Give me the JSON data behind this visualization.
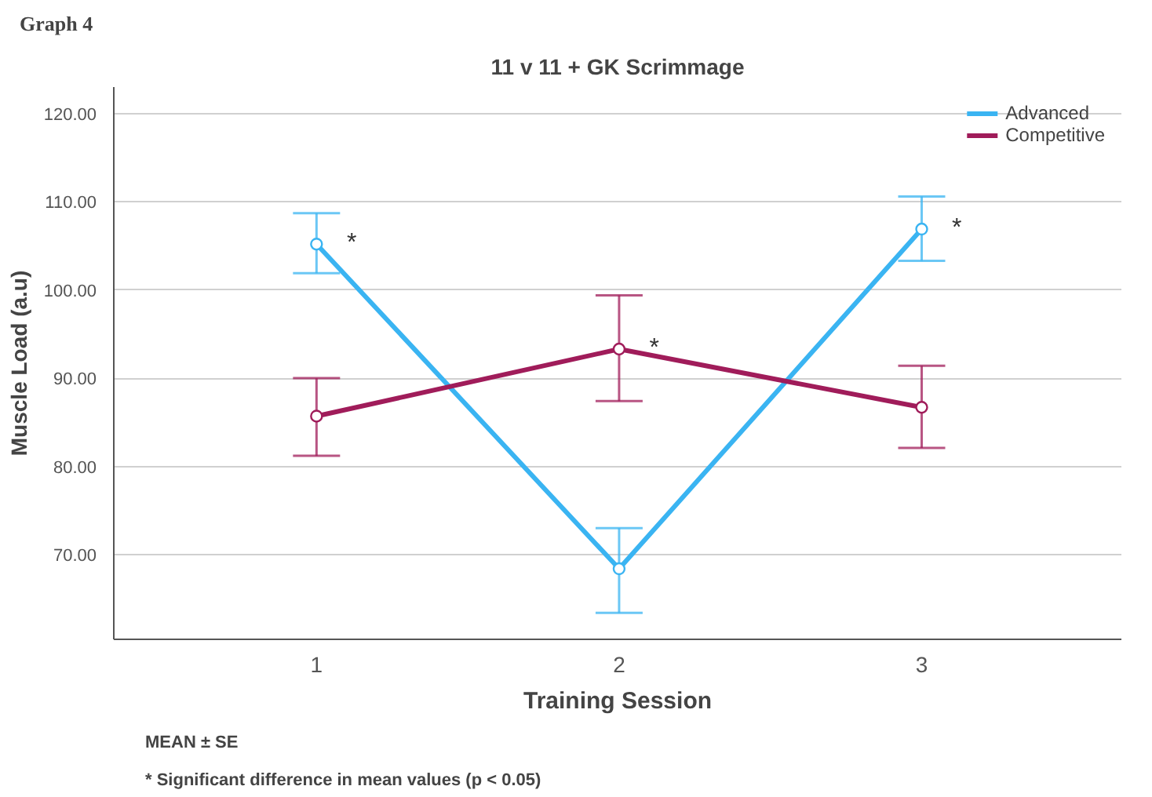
{
  "chart_data": {
    "type": "line",
    "title": "11 v 11 + GK Scrimmage",
    "xlabel": "Training Session",
    "ylabel": "Muscle Load (a.u)",
    "categories": [
      "1",
      "2",
      "3"
    ],
    "series": [
      {
        "name": "Advanced",
        "color": "#3ab4f2",
        "values": [
          105.2,
          68.4,
          106.9
        ],
        "errors": [
          [
            101.9,
            108.7
          ],
          [
            63.4,
            73.0
          ],
          [
            103.3,
            110.6
          ]
        ]
      },
      {
        "name": "Competitive",
        "color": "#a01c5a",
        "values": [
          85.7,
          93.3,
          86.7
        ],
        "errors": [
          [
            81.2,
            90.0
          ],
          [
            87.4,
            99.4
          ],
          [
            82.1,
            91.4
          ]
        ]
      }
    ],
    "ylim": [
      60.4,
      123
    ],
    "yticks": [
      {
        "value": 70,
        "label": "70.00"
      },
      {
        "value": 80,
        "label": "80.00"
      },
      {
        "value": 90,
        "label": "90.00"
      },
      {
        "value": 100,
        "label": "100.00"
      },
      {
        "value": 110,
        "label": "110.00"
      },
      {
        "value": 120,
        "label": "120.00"
      }
    ],
    "grid": "y",
    "legend": "top right",
    "marker": "circle",
    "line_style": "solid",
    "annotations": [
      "Graph 4",
      {
        "text": "*",
        "x": "1",
        "y": 105.2
      },
      {
        "text": "*",
        "x": "2",
        "y": 93.3
      },
      {
        "text": "*",
        "x": "3",
        "y": 106.9
      },
      "MEAN ± SE",
      "* Significant difference in mean values  (p < 0.05)"
    ]
  }
}
